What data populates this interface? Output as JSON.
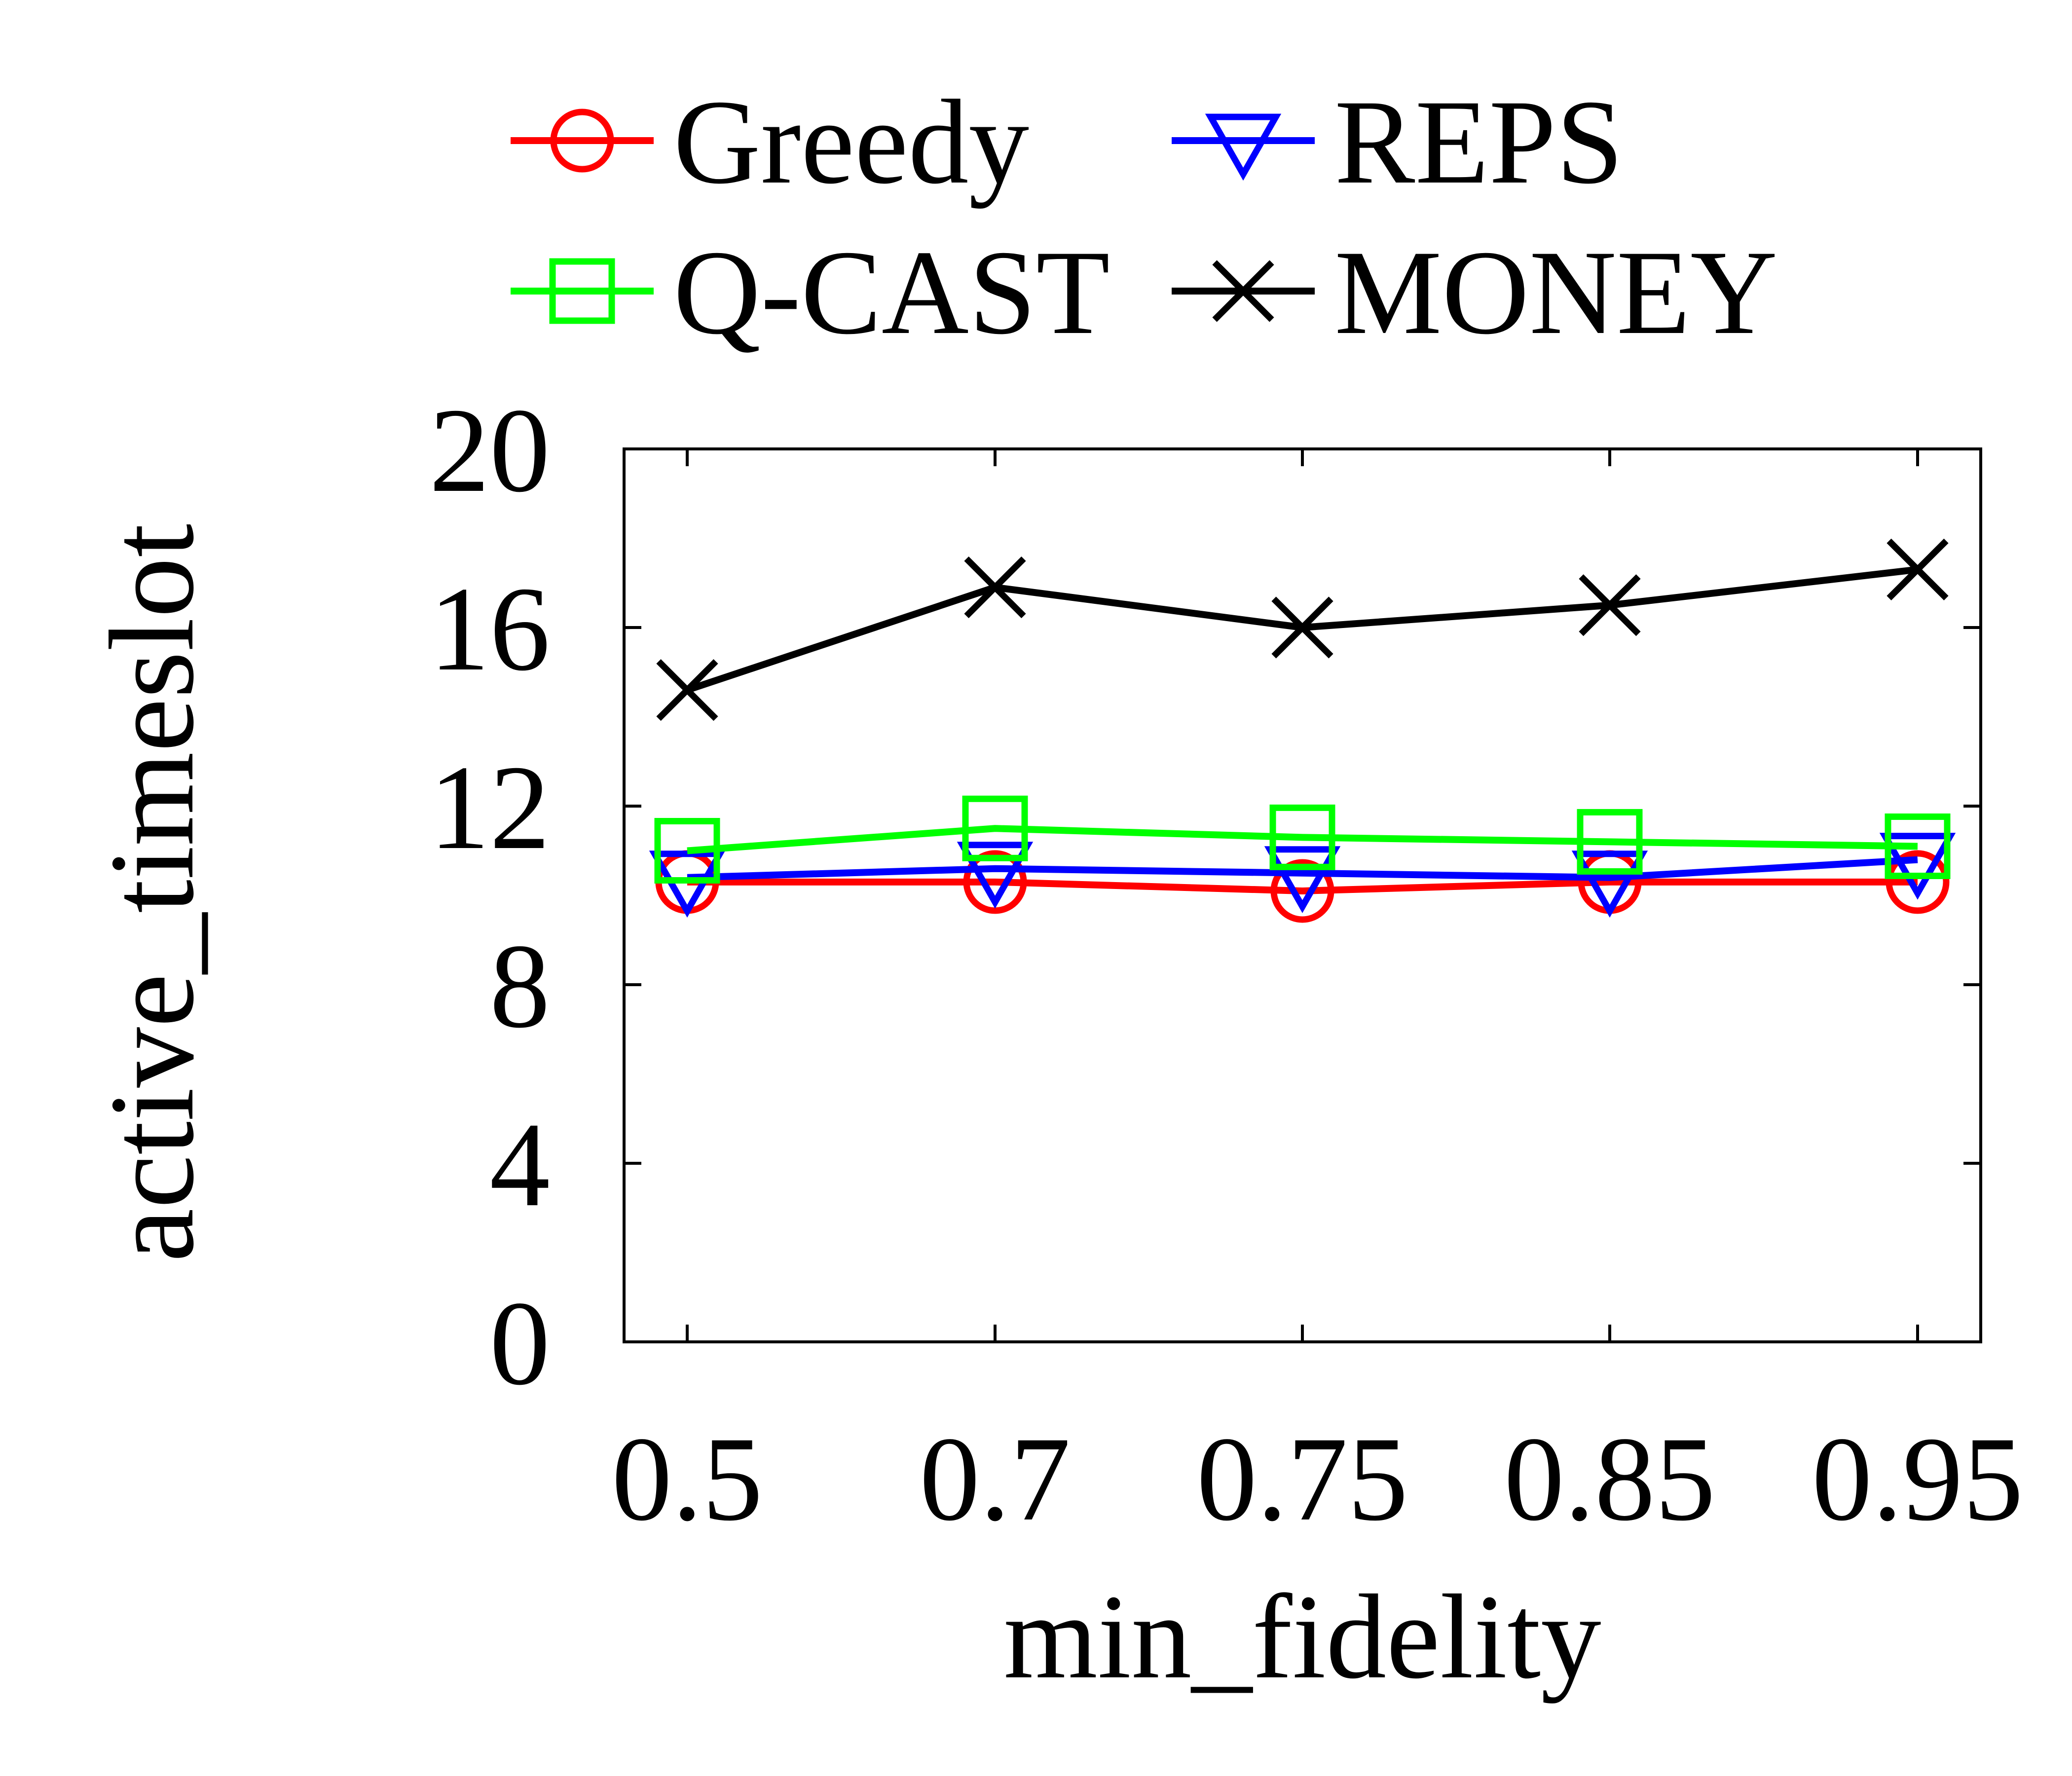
{
  "chart_data": {
    "type": "line",
    "title": "",
    "xlabel": "min_fidelity",
    "ylabel": "active_timeslot",
    "categories": [
      "0.5",
      "0.7",
      "0.75",
      "0.85",
      "0.95"
    ],
    "ylim": [
      0,
      20
    ],
    "yticks": [
      0,
      4,
      8,
      12,
      16,
      20
    ],
    "ytick_labels": [
      "0",
      "4",
      "8",
      "12",
      "16",
      "20"
    ],
    "grid": false,
    "legend_position": "top",
    "series": [
      {
        "name": "Greedy",
        "color": "#ff0000",
        "marker": "circle",
        "values": [
          10.3,
          10.3,
          10.1,
          10.3,
          10.3
        ]
      },
      {
        "name": "REPS",
        "color": "#0000ff",
        "marker": "triangle-down",
        "values": [
          10.4,
          10.6,
          10.5,
          10.4,
          10.8
        ]
      },
      {
        "name": "Q-CAST",
        "color": "#00ff00",
        "marker": "square",
        "values": [
          11.0,
          11.5,
          11.3,
          11.2,
          11.1
        ]
      },
      {
        "name": "MONEY",
        "color": "#000000",
        "marker": "x",
        "values": [
          14.6,
          16.9,
          16.0,
          16.5,
          17.3
        ]
      }
    ]
  }
}
